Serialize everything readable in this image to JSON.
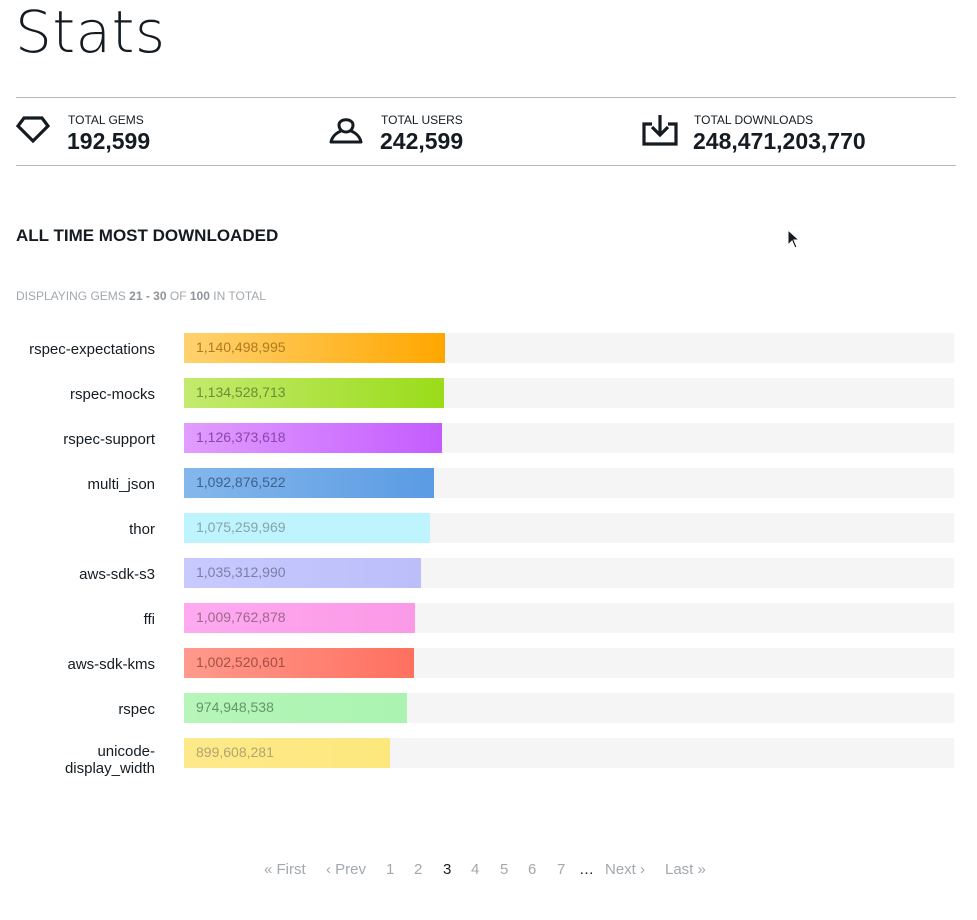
{
  "page": {
    "title": "Stats"
  },
  "stats": [
    {
      "icon": "gem-icon",
      "label": "TOTAL GEMS",
      "value": "192,599"
    },
    {
      "icon": "user-icon",
      "label": "TOTAL USERS",
      "value": "242,599"
    },
    {
      "icon": "download-icon",
      "label": "TOTAL DOWNLOADS",
      "value": "248,471,203,770"
    }
  ],
  "section": {
    "title": "ALL TIME MOST DOWNLOADED"
  },
  "displaying": {
    "prefix": "DISPLAYING GEMS",
    "range": "21 - 30",
    "of": "OF",
    "total": "100",
    "suffix": "IN TOTAL"
  },
  "colors": {
    "track": "#f5f5f5",
    "bars": [
      {
        "from": "#ffd270",
        "to": "#ffa700",
        "text": "#b07a20"
      },
      {
        "from": "#c4ea6e",
        "to": "#9adc1a",
        "text": "#6a8e3a"
      },
      {
        "from": "#e19dff",
        "to": "#c45cff",
        "text": "#8a46a8"
      },
      {
        "from": "#84b7ec",
        "to": "#5b9be3",
        "text": "#3d628c"
      },
      {
        "from": "#bdf4fd",
        "to": "#bdf4fd",
        "text": "#86a4aa"
      },
      {
        "from": "#c7c9ff",
        "to": "#bcbefa",
        "text": "#7c7ea8"
      },
      {
        "from": "#ffaaf0",
        "to": "#fb99e6",
        "text": "#a0668f"
      },
      {
        "from": "#ff9a8c",
        "to": "#ff7060",
        "text": "#a44e46"
      },
      {
        "from": "#b6f6b9",
        "to": "#aaf3b0",
        "text": "#62966a"
      },
      {
        "from": "#fde98a",
        "to": "#fde87d",
        "text": "#b2a56e"
      }
    ]
  },
  "chart_data": {
    "type": "bar",
    "categories": [
      "rspec-expectations",
      "rspec-mocks",
      "rspec-support",
      "multi_json",
      "thor",
      "aws-sdk-s3",
      "ffi",
      "aws-sdk-kms",
      "rspec",
      "unicode-display_width"
    ],
    "values": [
      1140498995,
      1134528713,
      1126373618,
      1092876522,
      1075259969,
      1035312990,
      1009762878,
      1002520601,
      974948538,
      899608281
    ],
    "labels": [
      "1,140,498,995",
      "1,134,528,713",
      "1,126,373,618",
      "1,092,876,522",
      "1,075,259,969",
      "1,035,312,990",
      "1,009,762,878",
      "1,002,520,601",
      "974,948,538",
      "899,608,281"
    ]
  },
  "pagination": {
    "items": [
      {
        "label": "« First",
        "kind": "link"
      },
      {
        "label": "‹ Prev",
        "kind": "link"
      },
      {
        "label": "1",
        "kind": "link"
      },
      {
        "label": "2",
        "kind": "link"
      },
      {
        "label": "3",
        "kind": "current"
      },
      {
        "label": "4",
        "kind": "link"
      },
      {
        "label": "5",
        "kind": "link"
      },
      {
        "label": "6",
        "kind": "link"
      },
      {
        "label": "7",
        "kind": "link"
      },
      {
        "label": "…",
        "kind": "gap"
      },
      {
        "label": "Next ›",
        "kind": "link"
      },
      {
        "label": "Last »",
        "kind": "link"
      }
    ]
  }
}
